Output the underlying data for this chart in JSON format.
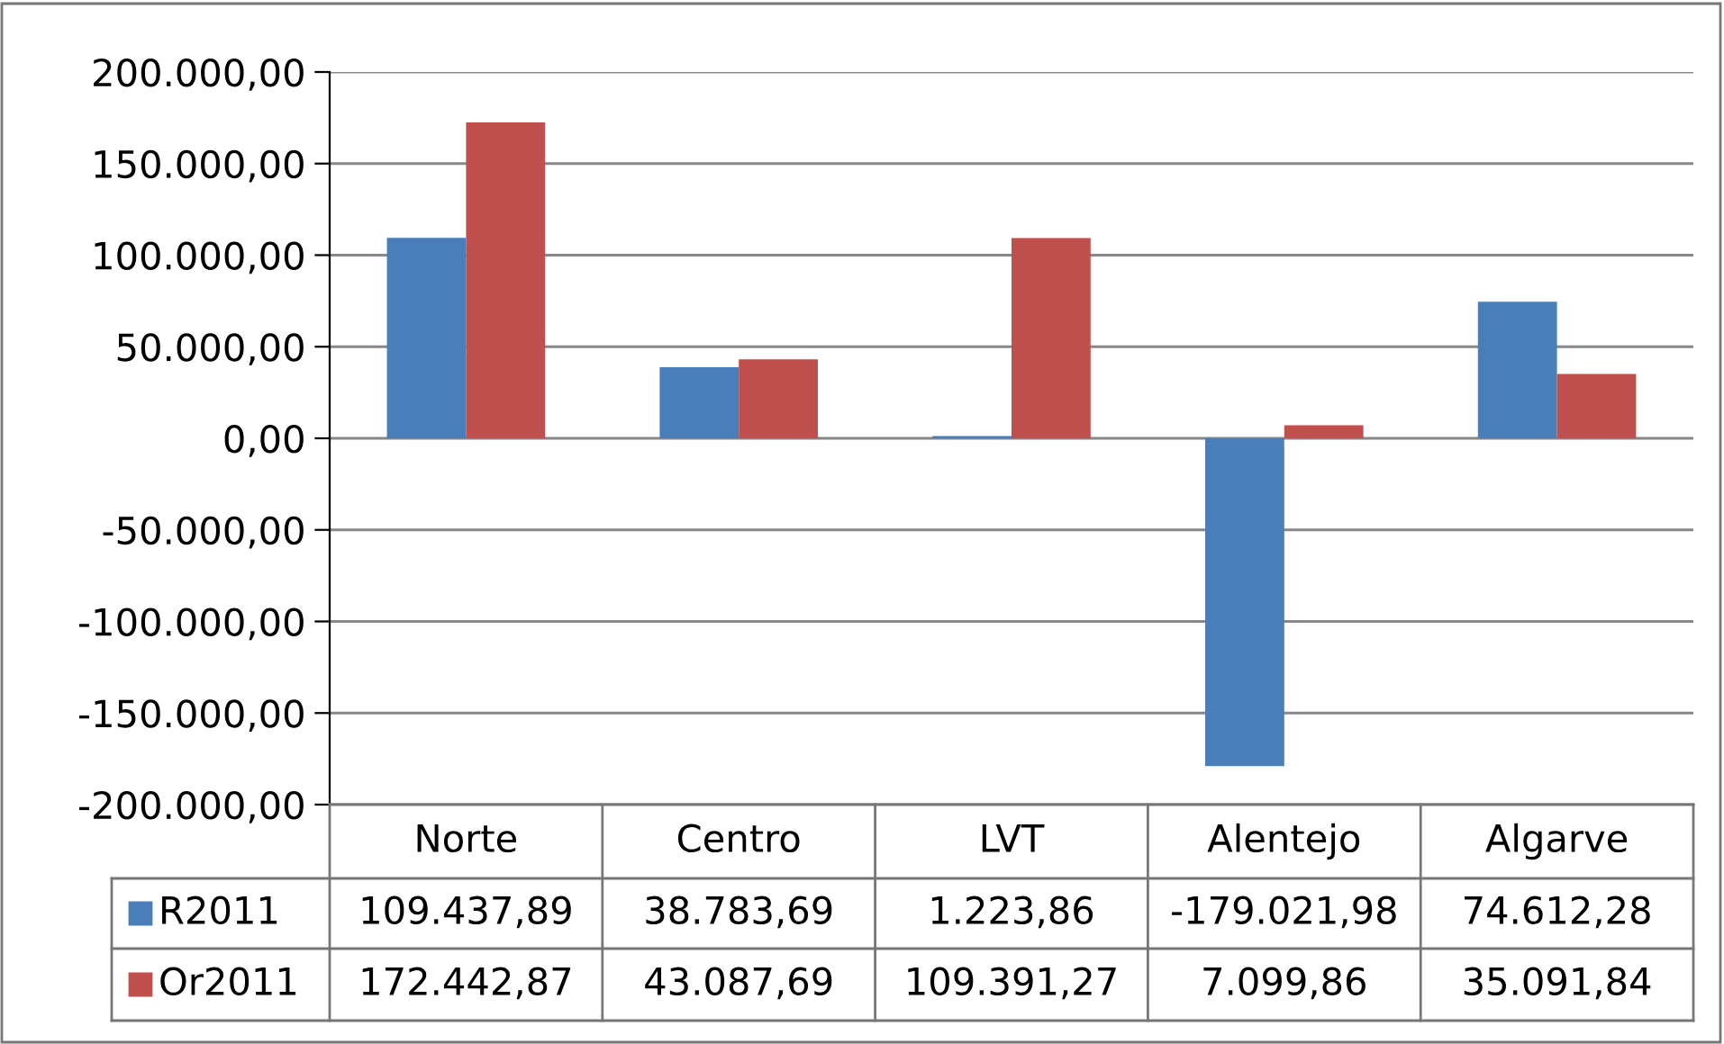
{
  "chart_data": {
    "type": "bar",
    "categories": [
      "Norte",
      "Centro",
      "LVT",
      "Alentejo",
      "Algarve"
    ],
    "series": [
      {
        "name": "R2011",
        "color": "#4a7ebb",
        "values": [
          109437.89,
          38783.69,
          1223.86,
          -179021.98,
          74612.28
        ],
        "value_labels": [
          "109.437,89",
          "38.783,69",
          "1.223,86",
          "-179.021,98",
          "74.612,28"
        ]
      },
      {
        "name": "Or2011",
        "color": "#c0504d",
        "values": [
          172442.87,
          43087.69,
          109391.27,
          7099.86,
          35091.84
        ],
        "value_labels": [
          "172.442,87",
          "43.087,69",
          "109.391,27",
          "7.099,86",
          "35.091,84"
        ]
      }
    ],
    "ylim": [
      -200000,
      200000
    ],
    "yticks": [
      {
        "value": -200000,
        "label": "-200.000,00"
      },
      {
        "value": -150000,
        "label": "-150.000,00"
      },
      {
        "value": -100000,
        "label": "-100.000,00"
      },
      {
        "value": -50000,
        "label": "-50.000,00"
      },
      {
        "value": 0,
        "label": "0,00"
      },
      {
        "value": 50000,
        "label": "50.000,00"
      },
      {
        "value": 100000,
        "label": "100.000,00"
      },
      {
        "value": 150000,
        "label": "150.000,00"
      },
      {
        "value": 200000,
        "label": "200.000,00"
      }
    ],
    "grid": "y",
    "legend": "bottom left"
  }
}
